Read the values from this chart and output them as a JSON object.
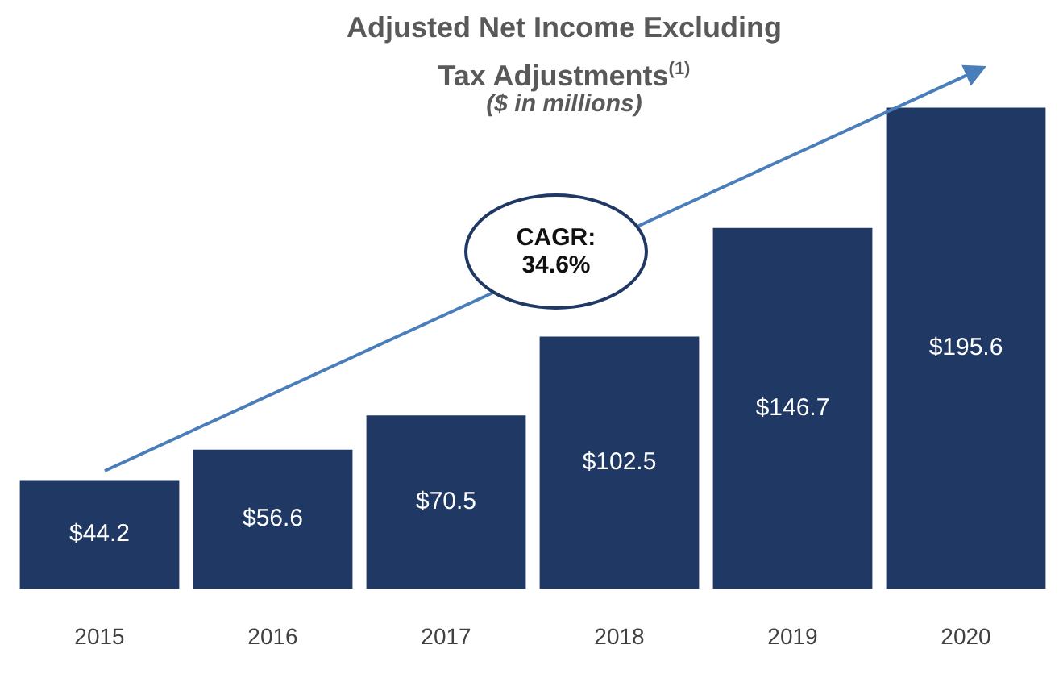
{
  "chart_data": {
    "type": "bar",
    "title": "Adjusted Net Income Excluding Tax Adjustments$^{(1)}$",
    "subtitle": "($ in millions)",
    "categories": [
      "2015",
      "2016",
      "2017",
      "2018",
      "2019",
      "2020"
    ],
    "values": [
      44.2,
      56.6,
      70.5,
      102.5,
      146.7,
      195.6
    ],
    "value_labels": [
      "$44.2",
      "$56.6",
      "$70.5",
      "$102.5",
      "$146.7",
      "$195.6"
    ],
    "color": "#1f3864",
    "grid": false,
    "legend": false,
    "tick_labels": "x",
    "annotations": [
      "CAGR: 34.6%"
    ]
  }
}
